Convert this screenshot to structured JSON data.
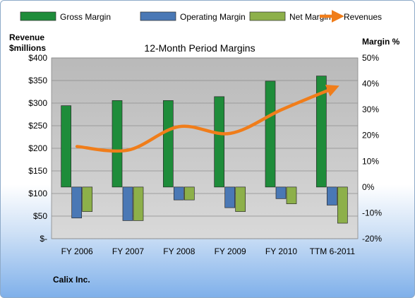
{
  "company": "Calix Inc.",
  "chart_data": {
    "type": "bar",
    "title": "12-Month Period Margins",
    "ylabel_left": [
      "Revenue",
      "$millions"
    ],
    "ylabel_right": "Margin %",
    "categories": [
      "FY 2006",
      "FY 2007",
      "FY 2008",
      "FY 2009",
      "FY 2010",
      "TTM 6-2011"
    ],
    "left_axis": {
      "range": [
        0,
        400
      ],
      "ticks": [
        0,
        50,
        100,
        150,
        200,
        250,
        300,
        350,
        400
      ],
      "tick_labels": [
        "$-",
        "$50",
        "$100",
        "$150",
        "$200",
        "$250",
        "$300",
        "$350",
        "$400"
      ]
    },
    "right_axis": {
      "range": [
        -20,
        50
      ],
      "ticks": [
        -20,
        -10,
        0,
        10,
        20,
        30,
        40,
        50
      ],
      "tick_labels": [
        "-20%",
        "-10%",
        "0%",
        "10%",
        "20%",
        "30%",
        "40%",
        "50%"
      ]
    },
    "series": [
      {
        "name": "Gross Margin",
        "type": "bar",
        "axis": "right",
        "color": "#1e8c3a",
        "values": [
          31.5,
          33.5,
          33.5,
          35.0,
          41.0,
          43.0
        ]
      },
      {
        "name": "Operating Margin",
        "type": "bar",
        "axis": "right",
        "color": "#4a78b5",
        "values": [
          -12.0,
          -13.0,
          -5.0,
          -8.0,
          -4.5,
          -7.0
        ]
      },
      {
        "name": "Net Margin",
        "type": "bar",
        "axis": "right",
        "color": "#8db04a",
        "values": [
          -9.5,
          -13.0,
          -5.0,
          -9.5,
          -6.5,
          -14.0
        ]
      },
      {
        "name": "Revenues",
        "type": "line",
        "axis": "left",
        "color": "#f07d1a",
        "values": [
          204,
          196,
          248,
          233,
          285,
          332
        ]
      }
    ],
    "grid": true,
    "legend": "top"
  }
}
